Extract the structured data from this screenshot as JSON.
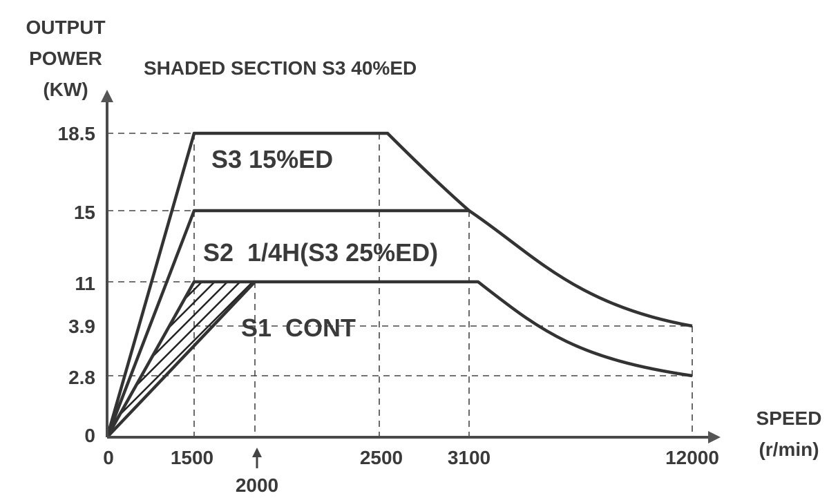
{
  "chart_data": {
    "type": "line",
    "title": "SHADED SECTION S3 40%ED",
    "ylabel": [
      "OUTPUT",
      "POWER",
      "(KW)"
    ],
    "xlabel": [
      "SPEED",
      "(r/min)"
    ],
    "y_ticks": [
      "18.5",
      "15",
      "11",
      "3.9",
      "2.8",
      "0"
    ],
    "x_ticks": [
      "0",
      "1500",
      "2500",
      "3100",
      "12000"
    ],
    "x_marker": {
      "label": "2000",
      "value": 2000
    },
    "series": [
      {
        "name": "S3 15%ED",
        "points": [
          [
            0,
            0
          ],
          [
            1500,
            18.5
          ],
          [
            2600,
            18.5
          ],
          [
            3100,
            15
          ],
          [
            12000,
            3.9
          ]
        ]
      },
      {
        "name": "S2  1/4H(S3 25%ED)",
        "points": [
          [
            0,
            0
          ],
          [
            1500,
            15
          ],
          [
            3100,
            15
          ],
          [
            12000,
            3.9
          ]
        ]
      },
      {
        "name": "S1  CONT",
        "points": [
          [
            0,
            0
          ],
          [
            1500,
            11
          ],
          [
            3200,
            11
          ],
          [
            12000,
            2.8
          ]
        ]
      },
      {
        "name": "S3 40%ED",
        "points": [
          [
            0,
            0
          ],
          [
            2000,
            11
          ]
        ],
        "shaded": true
      }
    ],
    "grid": "dashed reference lines"
  }
}
